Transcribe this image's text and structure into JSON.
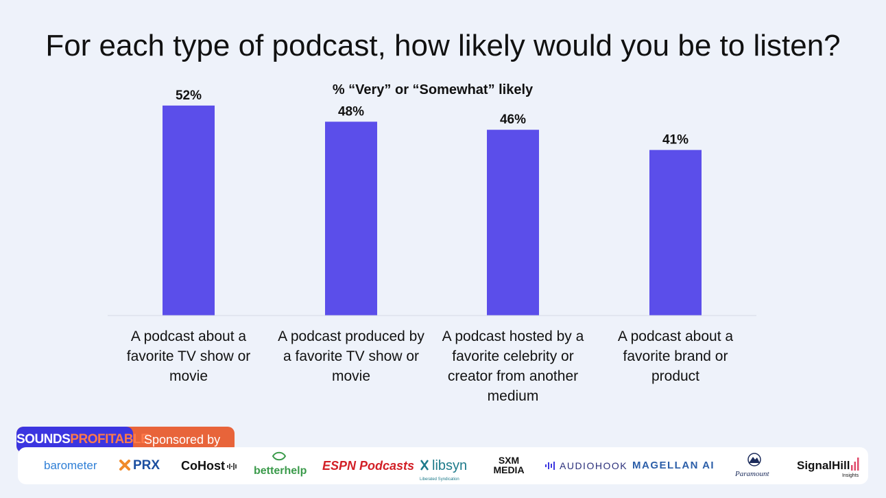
{
  "chart_data": {
    "type": "bar",
    "title": "For each type of podcast, how likely would you be to listen?",
    "subtitle": "% “Very” or “Somewhat” likely",
    "categories": [
      "A podcast about a favorite TV show or movie",
      "A podcast produced by a favorite TV show or movie",
      "A podcast hosted by a favorite celebrity or creator from another medium",
      "A podcast about a favorite brand or product"
    ],
    "category_lines": [
      [
        "A podcast about a",
        "favorite TV show or",
        "movie"
      ],
      [
        "A podcast produced by",
        "a favorite TV show or",
        "movie"
      ],
      [
        "A podcast hosted by a",
        "favorite celebrity or",
        "creator from another",
        "medium"
      ],
      [
        "A podcast about a",
        "favorite brand or",
        "product"
      ]
    ],
    "values": [
      52,
      48,
      46,
      41
    ],
    "value_labels": [
      "52%",
      "48%",
      "46%",
      "41%"
    ],
    "ylim": [
      0,
      62
    ],
    "bar_color": "#5b4eea",
    "xlabel": "",
    "ylabel": ""
  },
  "footer": {
    "brand_part1": "SOUNDS",
    "brand_part2": "PROFITABLE",
    "sponsored_label": "Sponsored by",
    "sponsors": [
      {
        "name": "barometer",
        "icon": "",
        "color": "#2f7fd6"
      },
      {
        "name": "PRX",
        "icon": "x-mark-icon",
        "color": "#1c4fa0"
      },
      {
        "name": "CoHost",
        "icon": "audio-wave-icon",
        "color": "#111111"
      },
      {
        "name": "betterhelp",
        "icon": "leaf-icon",
        "color": "#3a9a4a"
      },
      {
        "name": "ESPN Podcasts",
        "icon": "",
        "color": "#d21f26"
      },
      {
        "name": "libsyn",
        "icon": "libsyn-mark-icon",
        "color": "#1d7a8a"
      },
      {
        "name": "SXM MEDIA",
        "icon": "",
        "color": "#111111"
      },
      {
        "name": "AUDIOHOOK",
        "icon": "audio-bars-icon",
        "color": "#2a2f7a"
      },
      {
        "name": "MAGELLAN AI",
        "icon": "",
        "color": "#2b5ea8"
      },
      {
        "name": "Paramount",
        "icon": "mountain-stars-icon",
        "color": "#1a2a5a"
      },
      {
        "name": "SignalHill",
        "icon": "signal-bars-icon",
        "color": "#111111"
      }
    ],
    "signalhill_sub": "Insights",
    "libsyn_sub": "Liberated Syndication"
  }
}
